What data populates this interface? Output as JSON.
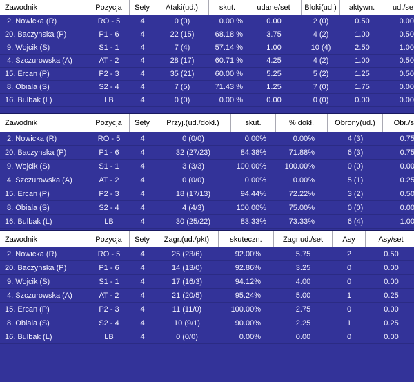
{
  "colors": {
    "background": "#333399",
    "row_text": "#f3f2fe",
    "row_divider": "#2b2b84",
    "header_background": "#ffffff",
    "header_text": "#000000",
    "header_divider": "#a9a9b3",
    "table_top_border": "#191960"
  },
  "tables": [
    {
      "title": "attack-and-block-statistics",
      "columns": [
        {
          "label": "Zawodnik"
        },
        {
          "label": "Pozycja"
        },
        {
          "label": "Sety"
        },
        {
          "label": "Ataki(ud.)"
        },
        {
          "label": "skut."
        },
        {
          "label": "udane/set"
        },
        {
          "label": "Bloki(ud.)"
        },
        {
          "label": "aktywn."
        },
        {
          "label": "ud./se"
        }
      ],
      "rows": [
        [
          " 2. Nowicka (R)",
          "RO - 5",
          "4",
          "0 (0)",
          "0.00 %",
          "0.00",
          "2 (0)",
          "0.50",
          "0.00"
        ],
        [
          "20. Baczynska (P)",
          "P1 - 6",
          "4",
          "22 (15)",
          "68.18 %",
          "3.75",
          "4 (2)",
          "1.00",
          "0.50"
        ],
        [
          " 9. Wojcik (S)",
          "S1 - 1",
          "4",
          "7 (4)",
          "57.14 %",
          "1.00",
          "10 (4)",
          "2.50",
          "1.00"
        ],
        [
          " 4. Szczurowska (A)",
          "AT - 2",
          "4",
          "28 (17)",
          "60.71 %",
          "4.25",
          "4 (2)",
          "1.00",
          "0.50"
        ],
        [
          "15. Ercan (P)",
          "P2 - 3",
          "4",
          "35 (21)",
          "60.00 %",
          "5.25",
          "5 (2)",
          "1.25",
          "0.50"
        ],
        [
          " 8. Obiala (S)",
          "S2 - 4",
          "4",
          "7 (5)",
          "71.43 %",
          "1.25",
          "7 (0)",
          "1.75",
          "0.00"
        ],
        [
          "16. Bulbak (L)",
          "LB",
          "4",
          "0 (0)",
          "0.00 %",
          "0.00",
          "0 (0)",
          "0.00",
          "0.00"
        ]
      ]
    },
    {
      "title": "reception-and-defense-statistics",
      "columns": [
        {
          "label": "Zawodnik"
        },
        {
          "label": "Pozycja"
        },
        {
          "label": "Sety"
        },
        {
          "label": "Przyj.(ud./dokł.)"
        },
        {
          "label": "skut."
        },
        {
          "label": "% dokł."
        },
        {
          "label": "Obrony(ud.)"
        },
        {
          "label": "Obr./s"
        }
      ],
      "rows": [
        [
          " 2. Nowicka (R)",
          "RO - 5",
          "4",
          "0 (0/0)",
          "0.00%",
          "0.00%",
          "4 (3)",
          "0.75"
        ],
        [
          "20. Baczynska (P)",
          "P1 - 6",
          "4",
          "32 (27/23)",
          "84.38%",
          "71.88%",
          "6 (3)",
          "0.75"
        ],
        [
          " 9. Wojcik (S)",
          "S1 - 1",
          "4",
          "3 (3/3)",
          "100.00%",
          "100.00%",
          "0 (0)",
          "0.00"
        ],
        [
          " 4. Szczurowska (A)",
          "AT - 2",
          "4",
          "0 (0/0)",
          "0.00%",
          "0.00%",
          "5 (1)",
          "0.25"
        ],
        [
          "15. Ercan (P)",
          "P2 - 3",
          "4",
          "18 (17/13)",
          "94.44%",
          "72.22%",
          "3 (2)",
          "0.50"
        ],
        [
          " 8. Obiala (S)",
          "S2 - 4",
          "4",
          "4 (4/3)",
          "100.00%",
          "75.00%",
          "0 (0)",
          "0.00"
        ],
        [
          "16. Bulbak (L)",
          "LB",
          "4",
          "30 (25/22)",
          "83.33%",
          "73.33%",
          "6 (4)",
          "1.00"
        ]
      ]
    },
    {
      "title": "serve-statistics",
      "columns": [
        {
          "label": "Zawodnik"
        },
        {
          "label": "Pozycja"
        },
        {
          "label": "Sety"
        },
        {
          "label": "Zagr.(ud./pkt)"
        },
        {
          "label": "skuteczn."
        },
        {
          "label": "Zagr.ud./set"
        },
        {
          "label": "Asy"
        },
        {
          "label": "Asy/set"
        }
      ],
      "rows": [
        [
          " 2. Nowicka (R)",
          "RO - 5",
          "4",
          "25 (23/6)",
          "92.00%",
          "5.75",
          "2",
          "0.50"
        ],
        [
          "20. Baczynska (P)",
          "P1 - 6",
          "4",
          "14 (13/0)",
          "92.86%",
          "3.25",
          "0",
          "0.00"
        ],
        [
          " 9. Wojcik (S)",
          "S1 - 1",
          "4",
          "17 (16/3)",
          "94.12%",
          "4.00",
          "0",
          "0.00"
        ],
        [
          " 4. Szczurowska (A)",
          "AT - 2",
          "4",
          "21 (20/5)",
          "95.24%",
          "5.00",
          "1",
          "0.25"
        ],
        [
          "15. Ercan (P)",
          "P2 - 3",
          "4",
          "11 (11/0)",
          "100.00%",
          "2.75",
          "0",
          "0.00"
        ],
        [
          " 8. Obiala (S)",
          "S2 - 4",
          "4",
          "10 (9/1)",
          "90.00%",
          "2.25",
          "1",
          "0.25"
        ],
        [
          "16. Bulbak (L)",
          "LB",
          "4",
          "0 (0/0)",
          "0.00%",
          "0.00",
          "0",
          "0.00"
        ]
      ]
    }
  ]
}
